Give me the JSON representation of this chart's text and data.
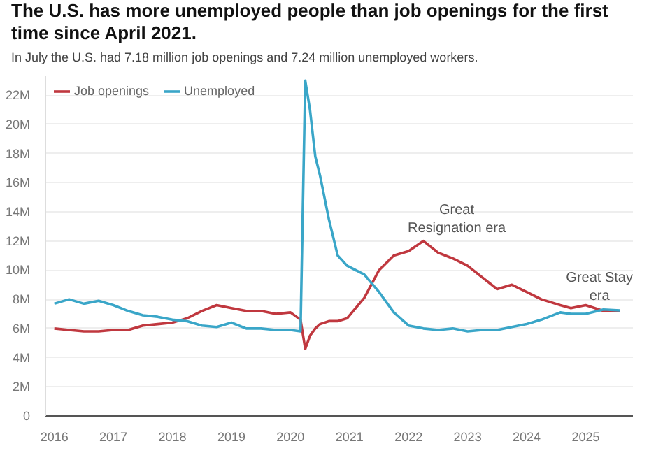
{
  "chart_data": {
    "type": "line",
    "title": "The U.S. has more unemployed people than job openings for the first time since April 2021.",
    "subtitle": "In July the U.S. had 7.18 million job openings and 7.24 million unemployed workers.",
    "x": [
      2016.0,
      2016.25,
      2016.5,
      2016.75,
      2017.0,
      2017.25,
      2017.5,
      2017.75,
      2018.0,
      2018.25,
      2018.5,
      2018.75,
      2019.0,
      2019.25,
      2019.5,
      2019.75,
      2020.0,
      2020.17,
      2020.25,
      2020.33,
      2020.42,
      2020.5,
      2020.65,
      2020.8,
      2020.96,
      2021.25,
      2021.5,
      2021.75,
      2022.0,
      2022.25,
      2022.5,
      2022.75,
      2023.0,
      2023.25,
      2023.5,
      2023.75,
      2024.0,
      2024.25,
      2024.57,
      2024.75,
      2025.0,
      2025.3,
      2025.58
    ],
    "series": [
      {
        "name": "Job openings",
        "color": "#c0383f",
        "values": [
          6.0,
          5.9,
          5.8,
          5.8,
          5.9,
          5.9,
          6.2,
          6.3,
          6.4,
          6.7,
          7.2,
          7.6,
          7.4,
          7.2,
          7.2,
          7.0,
          7.1,
          6.6,
          4.6,
          5.5,
          6.0,
          6.3,
          6.5,
          6.5,
          6.7,
          8.1,
          10.0,
          11.0,
          11.3,
          12.0,
          11.2,
          10.8,
          10.3,
          9.5,
          8.7,
          9.0,
          8.5,
          8.0,
          7.6,
          7.4,
          7.6,
          7.2,
          7.18
        ]
      },
      {
        "name": "Unemployed",
        "color": "#3aa6c8",
        "values": [
          7.7,
          8.0,
          7.7,
          7.9,
          7.6,
          7.2,
          6.9,
          6.8,
          6.6,
          6.5,
          6.2,
          6.1,
          6.4,
          6.0,
          6.0,
          5.9,
          5.9,
          5.8,
          23.0,
          21.0,
          17.8,
          16.5,
          13.5,
          11.0,
          10.3,
          9.7,
          8.5,
          7.1,
          6.2,
          6.0,
          5.9,
          6.0,
          5.8,
          5.9,
          5.9,
          6.1,
          6.3,
          6.6,
          7.1,
          7.0,
          7.0,
          7.3,
          7.24
        ]
      }
    ],
    "xlim": [
      2015.85,
      2025.8
    ],
    "xticks": [
      2016,
      2017,
      2018,
      2019,
      2020,
      2021,
      2022,
      2023,
      2024,
      2025
    ],
    "ylim": [
      0,
      23.3
    ],
    "yticks": [
      0,
      {
        "value": 2,
        "label": "2M"
      },
      {
        "value": 4,
        "label": "4M"
      },
      {
        "value": 6,
        "label": "6M"
      },
      {
        "value": 8,
        "label": "8M"
      },
      {
        "value": 10,
        "label": "10M"
      },
      {
        "value": 12,
        "label": "12M"
      },
      {
        "value": 14,
        "label": "14M"
      },
      {
        "value": 16,
        "label": "16M"
      },
      {
        "value": 18,
        "label": "18M"
      },
      {
        "value": 20,
        "label": "20M"
      },
      {
        "value": 22,
        "label": "22M"
      }
    ],
    "grid": "y",
    "legend": "top left",
    "marker": "none",
    "line_style": "solid",
    "annotations": [
      "Great\nResignation era",
      "Great Stay\nera"
    ]
  }
}
